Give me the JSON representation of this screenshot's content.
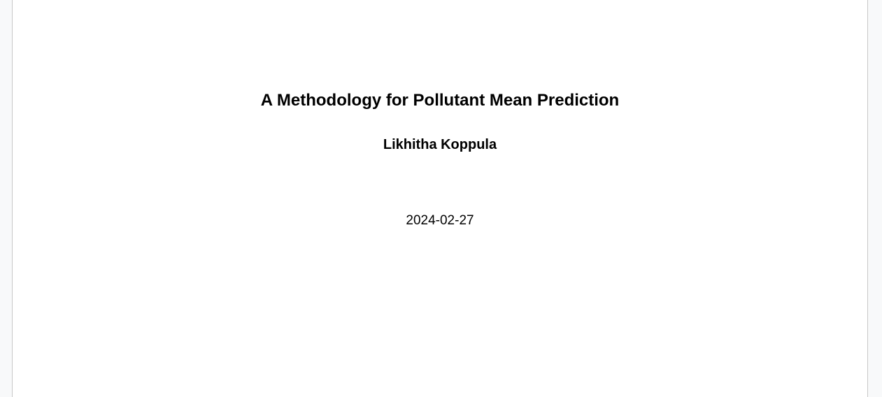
{
  "document": {
    "title": "A Methodology for Pollutant Mean Prediction",
    "author": "Likhitha Koppula",
    "date": "2024-02-27"
  },
  "colors": {
    "background": "#f8f9fa",
    "page": "#ffffff",
    "border": "#c8c8c8",
    "text": "#000000"
  }
}
